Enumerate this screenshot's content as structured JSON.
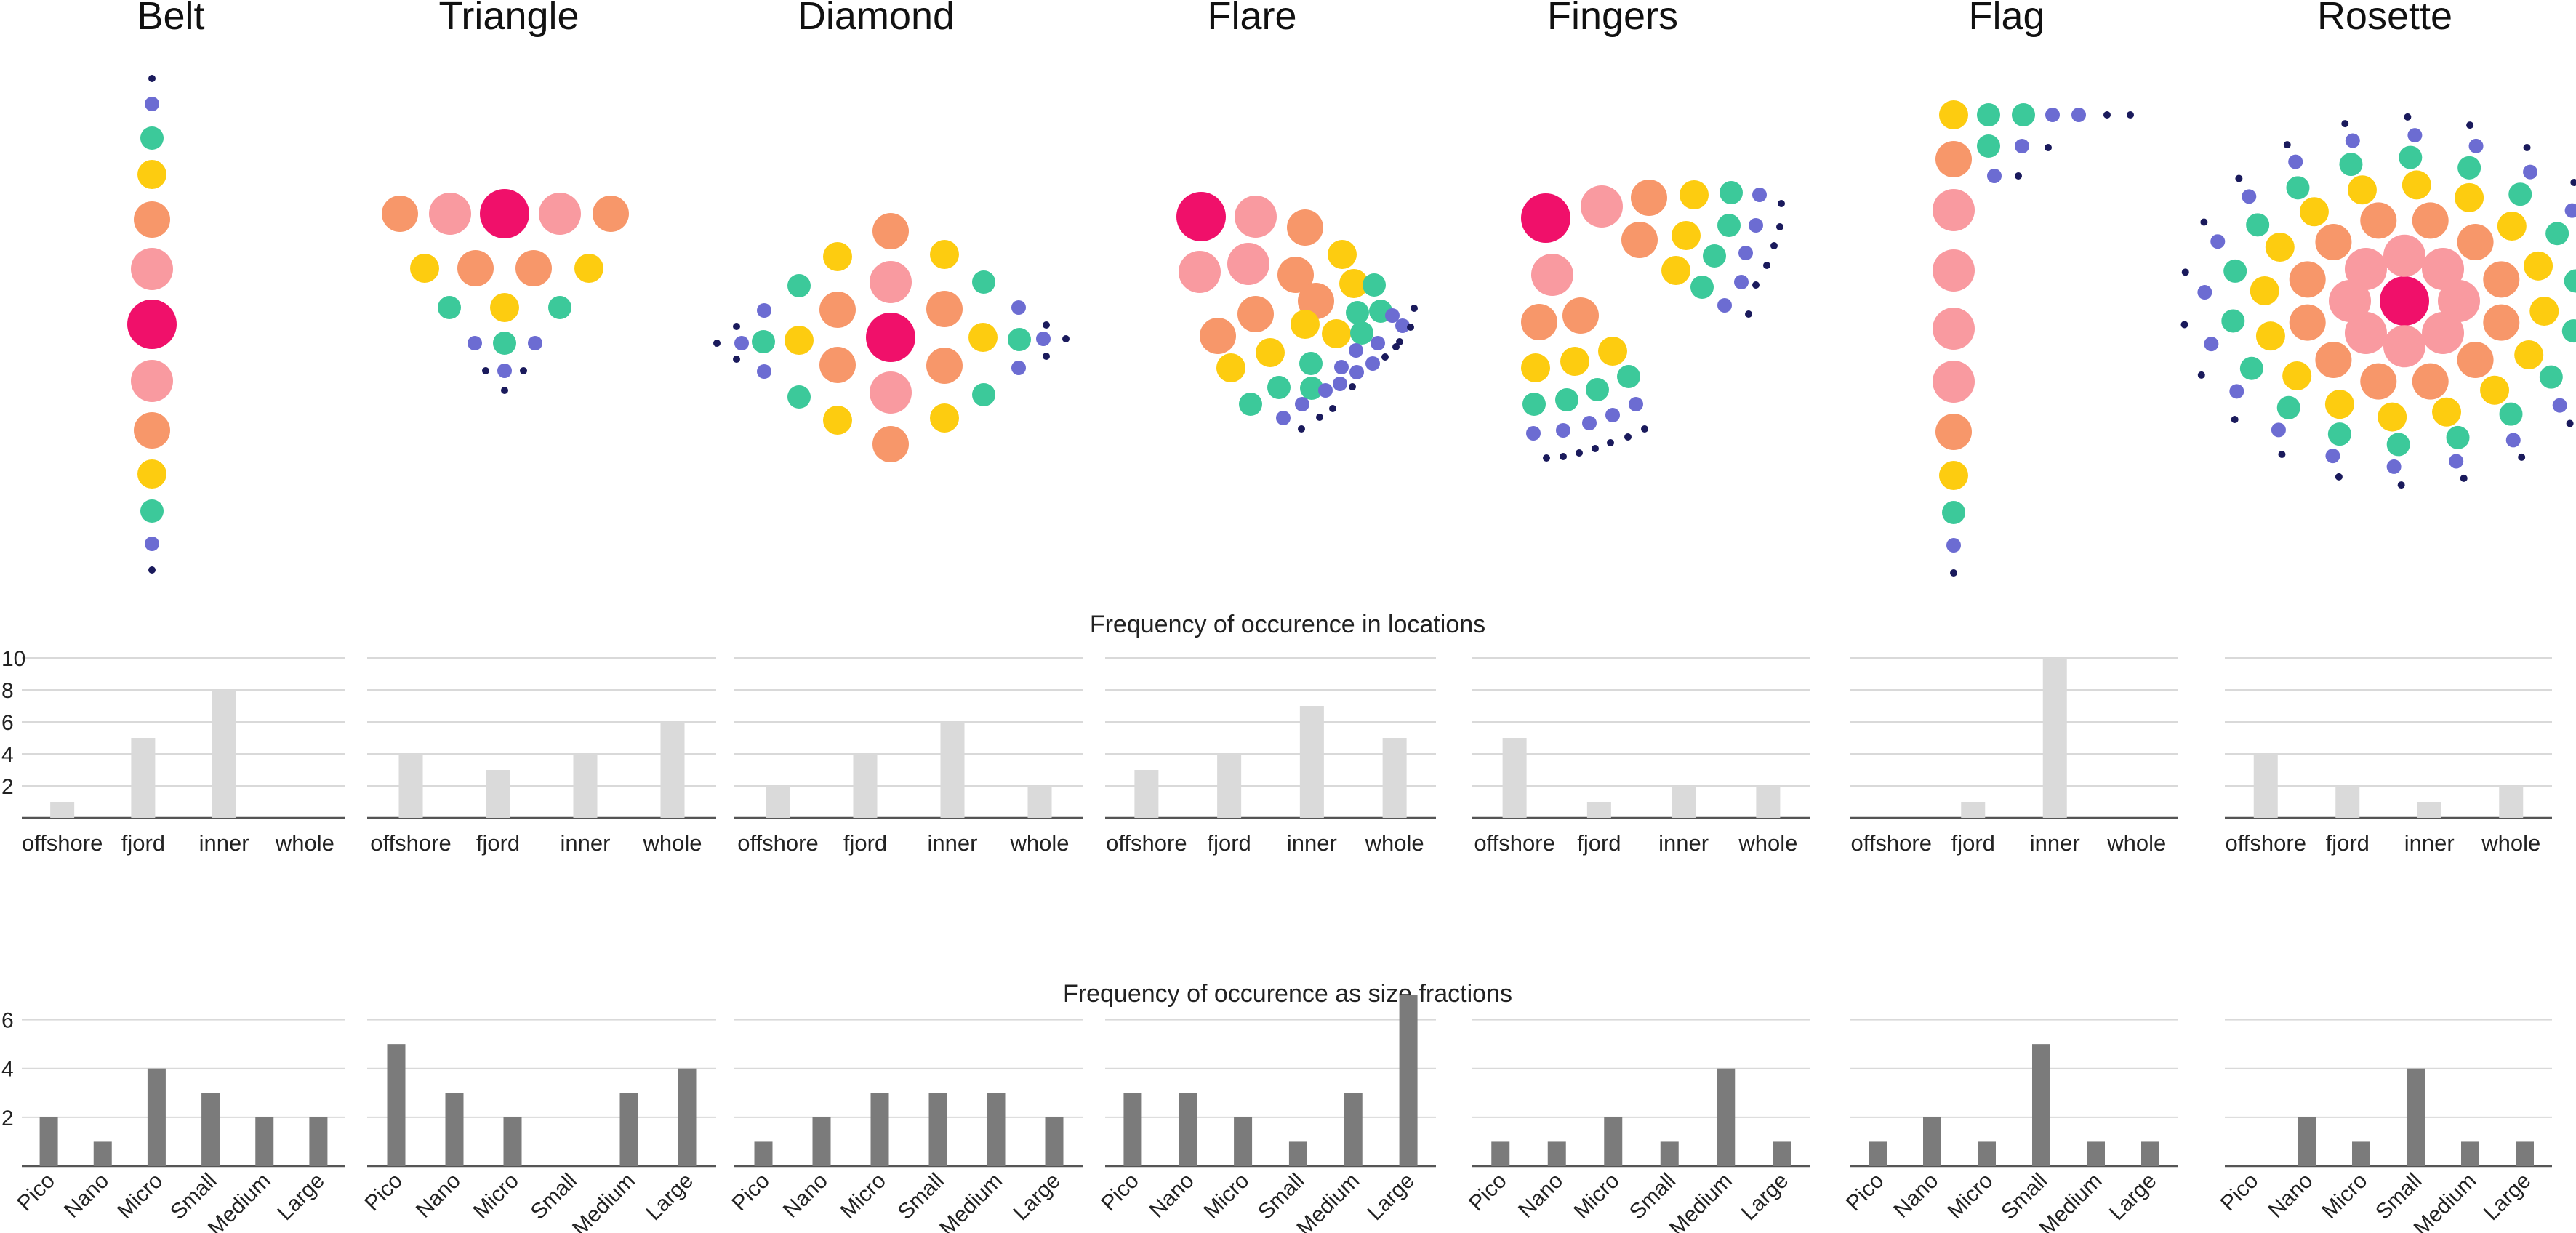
{
  "panel_titles": [
    "Belt",
    "Triangle",
    "Diamond",
    "Flare",
    "Fingers",
    "Flag",
    "Rosette"
  ],
  "dot_colors": {
    "magenta": "#f0106a",
    "pink": "#f99aa0",
    "orange": "#f7976a",
    "yellow": "#fdcc10",
    "green": "#3cc99a",
    "blue": "#6c6cd2",
    "navy": "#1a1a5c"
  },
  "chart_data": [
    {
      "type": "bar",
      "group": "locations",
      "title": "Frequency of occurence in locations",
      "categories": [
        "offshore",
        "fjord",
        "inner",
        "whole"
      ],
      "ylim": [
        0,
        10
      ],
      "yticks": [
        "2",
        "4",
        "6",
        "8",
        "10"
      ],
      "bar_color": "#dadada",
      "grid": true,
      "panels": [
        {
          "name": "Belt",
          "values": [
            1,
            5,
            8,
            0
          ]
        },
        {
          "name": "Triangle",
          "values": [
            4,
            3,
            4,
            6
          ]
        },
        {
          "name": "Diamond",
          "values": [
            2,
            4,
            6,
            2
          ]
        },
        {
          "name": "Flare",
          "values": [
            3,
            4,
            7,
            5
          ]
        },
        {
          "name": "Fingers",
          "values": [
            5,
            1,
            2,
            2
          ]
        },
        {
          "name": "Flag",
          "values": [
            0,
            1,
            10,
            0
          ]
        },
        {
          "name": "Rosette",
          "values": [
            4,
            2,
            1,
            2
          ]
        }
      ]
    },
    {
      "type": "bar",
      "group": "size_fractions",
      "title": "Frequency of occurence as size fractions",
      "categories": [
        "Pico",
        "Nano",
        "Micro",
        "Small",
        "Medium",
        "Large"
      ],
      "ylim": [
        0,
        7
      ],
      "yticks": [
        "2",
        "4",
        "6"
      ],
      "bar_color": "#7b7b7b",
      "grid": true,
      "panels": [
        {
          "name": "Belt",
          "values": [
            2,
            1,
            4,
            3,
            2,
            2
          ]
        },
        {
          "name": "Triangle",
          "values": [
            5,
            3,
            2,
            0,
            3,
            4
          ]
        },
        {
          "name": "Diamond",
          "values": [
            1,
            2,
            3,
            3,
            3,
            2
          ]
        },
        {
          "name": "Flare",
          "values": [
            3,
            3,
            2,
            1,
            3,
            7
          ]
        },
        {
          "name": "Fingers",
          "values": [
            1,
            1,
            2,
            1,
            4,
            1
          ]
        },
        {
          "name": "Flag",
          "values": [
            1,
            2,
            1,
            5,
            1,
            1
          ]
        },
        {
          "name": "Rosette",
          "values": [
            0,
            2,
            1,
            4,
            1,
            1
          ]
        }
      ]
    }
  ]
}
